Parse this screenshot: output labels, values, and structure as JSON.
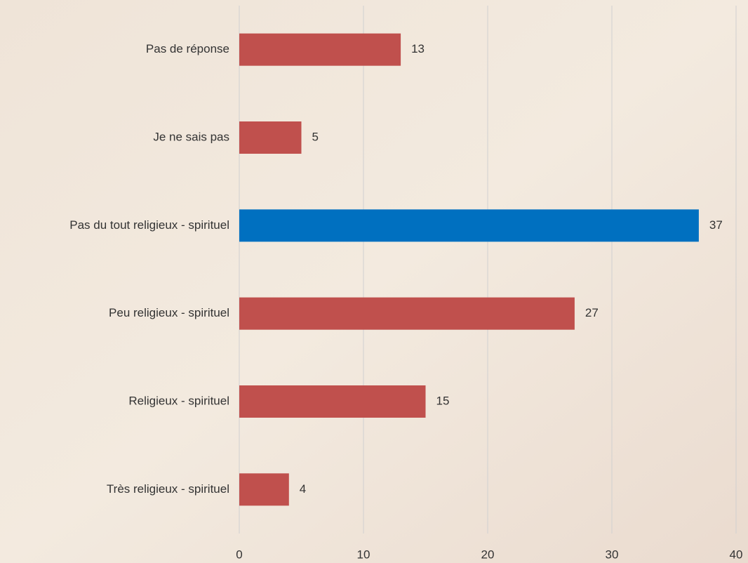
{
  "chart_data": {
    "type": "barh",
    "categories": [
      "Pas de réponse",
      "Je ne sais pas",
      "Pas du tout religieux - spirituel",
      "Peu religieux - spirituel",
      "Religieux - spirituel",
      "Très religieux - spirituel"
    ],
    "values": [
      13,
      5,
      37,
      27,
      15,
      4
    ],
    "colors": [
      "#c0504d",
      "#c0504d",
      "#0070c0",
      "#c0504d",
      "#c0504d",
      "#c0504d"
    ],
    "xlim": [
      0,
      40
    ],
    "xticks": [
      0,
      10,
      20,
      30,
      40
    ],
    "grid": true
  }
}
